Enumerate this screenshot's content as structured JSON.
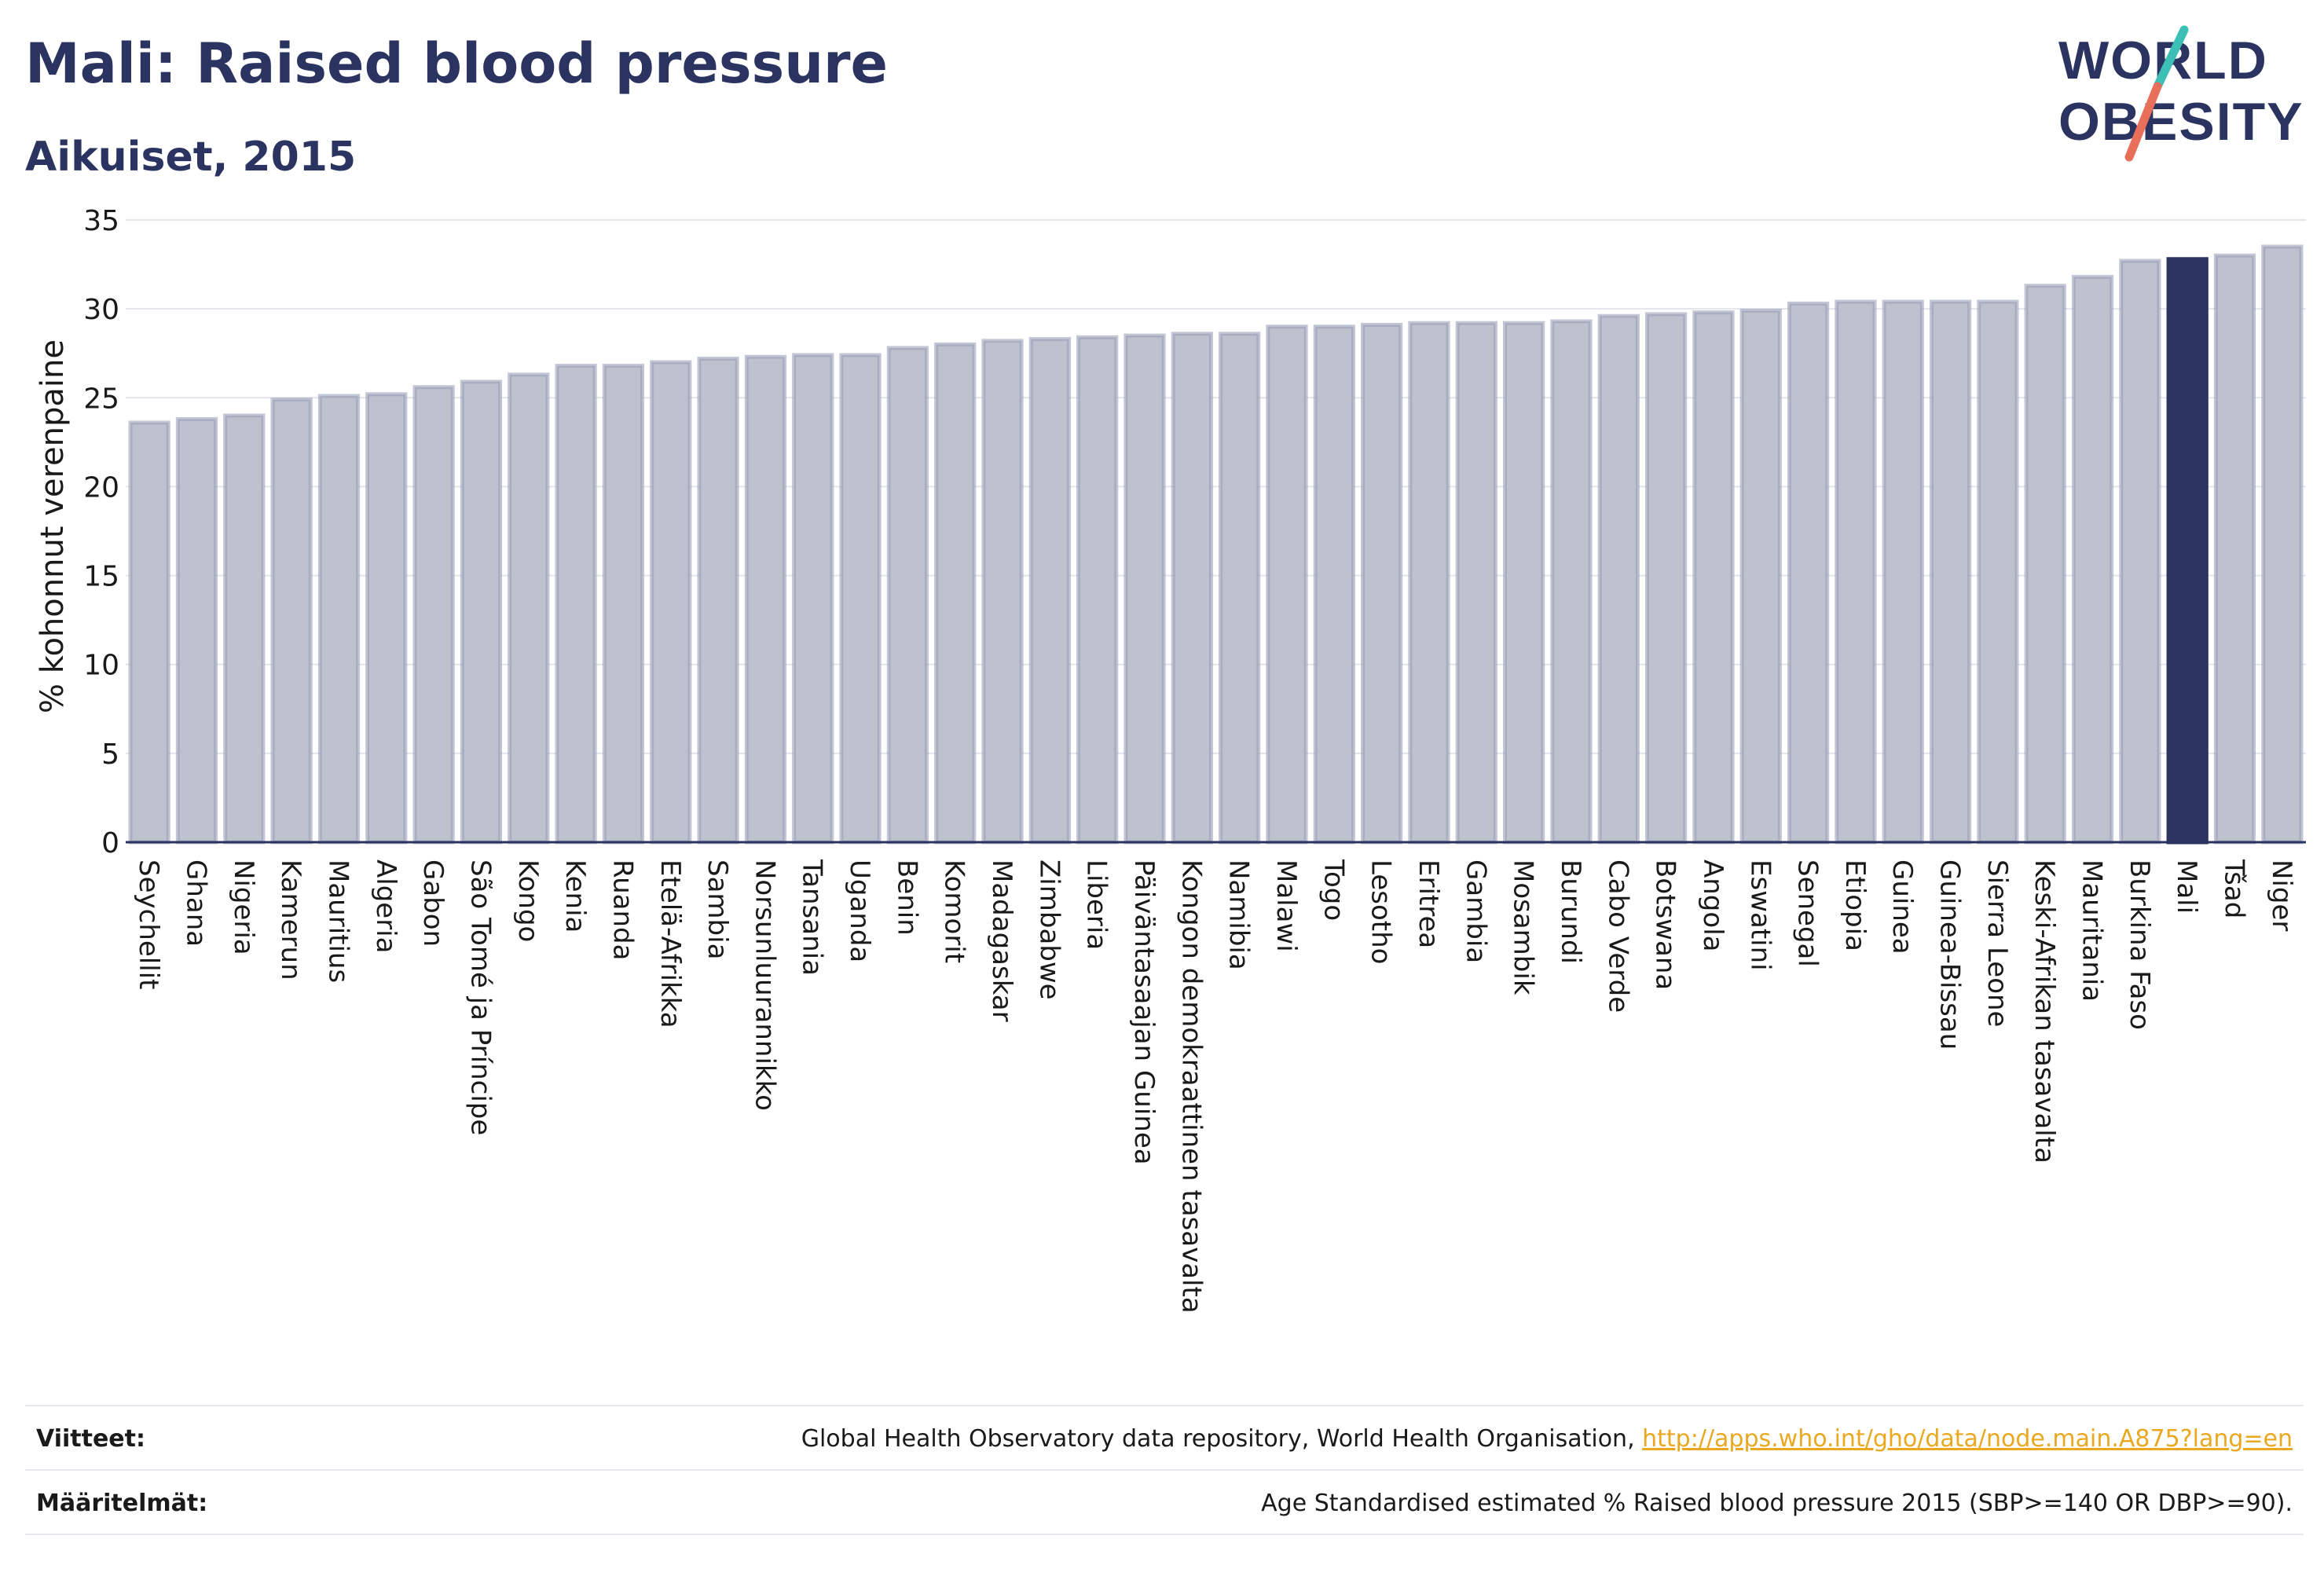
{
  "header": {
    "title": "Mali: Raised blood pressure",
    "subtitle": "Aikuiset, 2015"
  },
  "logo": {
    "line1": "WORLD",
    "line2": "OBESITY",
    "accent_colors": [
      "#3cbfb4",
      "#e8705a"
    ]
  },
  "footer": {
    "sources_label": "Viitteet:",
    "sources_text": "Global Health Observatory data repository, World Health Organisation, ",
    "sources_link": "http://apps.who.int/gho/data/node.main.A875?lang=en",
    "definitions_label": "Määritelmät:",
    "definitions_text": "Age Standardised estimated % Raised blood pressure 2015 (SBP>=140 OR DBP>=90)."
  },
  "colors": {
    "bar_fill": "#bec1ce",
    "bar_stroke": "#9ba0b8",
    "highlight": "#2b3361",
    "grid": "#e3e5ec",
    "text": "#1a1a1a"
  },
  "chart_data": {
    "type": "bar",
    "title": "Mali: Raised blood pressure",
    "subtitle": "Aikuiset, 2015",
    "xlabel": "",
    "ylabel": "% kohonnut verenpaine",
    "ylim": [
      0,
      35
    ],
    "yticks": [
      0,
      5,
      10,
      15,
      20,
      25,
      30,
      35
    ],
    "grid": true,
    "highlight": "Mali",
    "categories": [
      "Seychellit",
      "Ghana",
      "Nigeria",
      "Kamerun",
      "Mauritius",
      "Algeria",
      "Gabon",
      "São Tomé ja Príncipe",
      "Kongo",
      "Kenia",
      "Ruanda",
      "Etelä-Afrikka",
      "Sambia",
      "Norsunluurannikko",
      "Tansania",
      "Uganda",
      "Benin",
      "Komorit",
      "Madagaskar",
      "Zimbabwe",
      "Liberia",
      "Päiväntasaajan Guinea",
      "Kongon demokraattinen tasavalta",
      "Namibia",
      "Malawi",
      "Togo",
      "Lesotho",
      "Eritrea",
      "Gambia",
      "Mosambik",
      "Burundi",
      "Cabo Verde",
      "Botswana",
      "Angola",
      "Eswatini",
      "Senegal",
      "Etiopia",
      "Guinea",
      "Guinea-Bissau",
      "Sierra Leone",
      "Keski-Afrikan tasavalta",
      "Mauritania",
      "Burkina Faso",
      "Mali",
      "Tšad",
      "Niger"
    ],
    "values": [
      23.6,
      23.8,
      24.0,
      24.9,
      25.1,
      25.2,
      25.6,
      25.9,
      26.3,
      26.8,
      26.8,
      27.0,
      27.2,
      27.3,
      27.4,
      27.4,
      27.8,
      28.0,
      28.2,
      28.3,
      28.4,
      28.5,
      28.6,
      28.6,
      29.0,
      29.0,
      29.1,
      29.2,
      29.2,
      29.2,
      29.3,
      29.6,
      29.7,
      29.8,
      29.9,
      30.3,
      30.4,
      30.4,
      30.4,
      30.4,
      31.3,
      31.8,
      32.7,
      32.8,
      33.0,
      33.5
    ]
  }
}
